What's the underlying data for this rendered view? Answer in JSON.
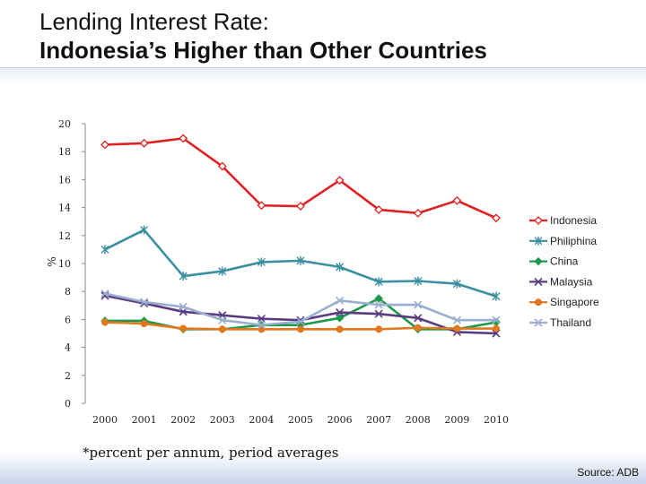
{
  "header": {
    "title_line1": "Lending Interest Rate:",
    "title_line2": "Indonesia’s Higher than Other Countries"
  },
  "footnote": "*percent per annum, period averages",
  "source": "Source: ADB",
  "chart_data": {
    "type": "line",
    "title": "",
    "xlabel": "",
    "ylabel": "%",
    "x": [
      2000,
      2001,
      2002,
      2003,
      2004,
      2005,
      2006,
      2007,
      2008,
      2009,
      2010
    ],
    "ylim": [
      0,
      20
    ],
    "yticks": [
      0,
      2,
      4,
      6,
      8,
      10,
      12,
      14,
      16,
      18,
      20
    ],
    "legend_position": "right",
    "grid": false,
    "series": [
      {
        "name": "Indonesia",
        "color": "#e02020",
        "marker": "diamond-open",
        "values": [
          18.5,
          18.6,
          18.95,
          16.95,
          14.15,
          14.1,
          15.95,
          13.85,
          13.6,
          14.5,
          13.25
        ]
      },
      {
        "name": "Philiphina",
        "color": "#3a8fa0",
        "marker": "star",
        "values": [
          11.0,
          12.4,
          9.1,
          9.45,
          10.1,
          10.2,
          9.75,
          8.7,
          8.75,
          8.55,
          7.65
        ]
      },
      {
        "name": "China",
        "color": "#1a9a4a",
        "marker": "diamond",
        "values": [
          5.9,
          5.9,
          5.3,
          5.3,
          5.6,
          5.6,
          6.1,
          7.5,
          5.3,
          5.3,
          5.8
        ]
      },
      {
        "name": "Malaysia",
        "color": "#5a3a80",
        "marker": "x",
        "values": [
          7.7,
          7.15,
          6.55,
          6.3,
          6.05,
          5.95,
          6.5,
          6.4,
          6.1,
          5.1,
          5.0
        ]
      },
      {
        "name": "Singapore",
        "color": "#e07820",
        "marker": "circle",
        "values": [
          5.8,
          5.7,
          5.35,
          5.3,
          5.3,
          5.3,
          5.3,
          5.3,
          5.4,
          5.35,
          5.35
        ]
      },
      {
        "name": "Thailand",
        "color": "#9aaed0",
        "marker": "x",
        "values": [
          7.85,
          7.25,
          6.9,
          5.95,
          5.6,
          5.85,
          7.35,
          7.05,
          7.05,
          5.95,
          5.95
        ]
      }
    ]
  }
}
